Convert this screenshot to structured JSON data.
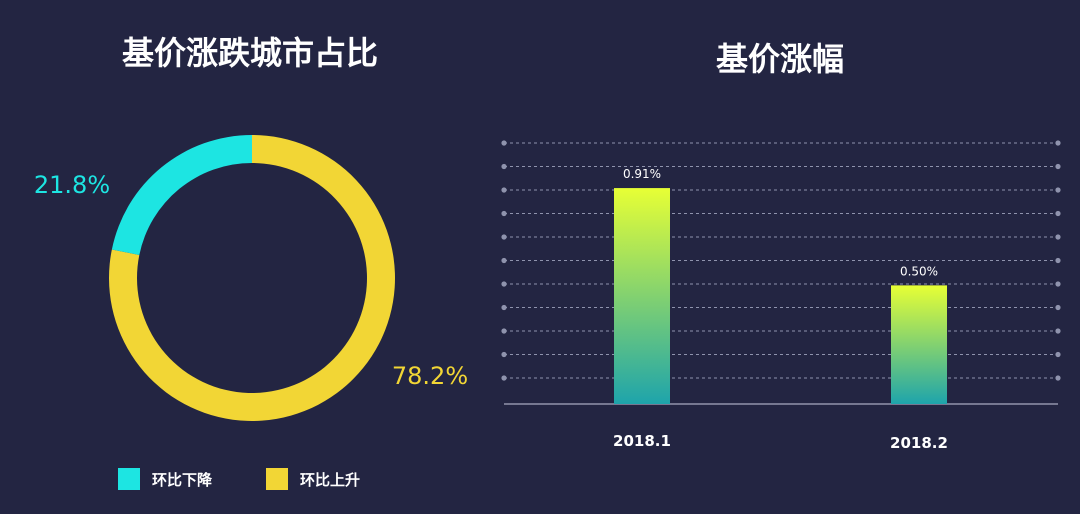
{
  "colors": {
    "background": "#232542",
    "down": "#1de5e2",
    "up": "#f2d635",
    "bar_top": "#e7ff35",
    "bar_bottom": "#1ea4ab",
    "grid": "#8f93ad"
  },
  "chart_data": [
    {
      "type": "pie",
      "title": "基价涨跌城市占比",
      "legend": [
        "环比下降",
        "环比上升"
      ],
      "legend_position": "bottom",
      "slices": [
        {
          "name": "环比下降",
          "value": 21.8,
          "label": "21.8%",
          "color": "#1de5e2"
        },
        {
          "name": "环比上升",
          "value": 78.2,
          "label": "78.2%",
          "color": "#f2d635"
        }
      ]
    },
    {
      "type": "bar",
      "title": "基价涨幅",
      "categories": [
        "2018.1",
        "2018.2"
      ],
      "values": [
        0.91,
        0.5
      ],
      "data_labels": [
        "0.91%",
        "0.50%"
      ],
      "ylim": [
        0,
        1.1
      ],
      "grid": true
    }
  ]
}
